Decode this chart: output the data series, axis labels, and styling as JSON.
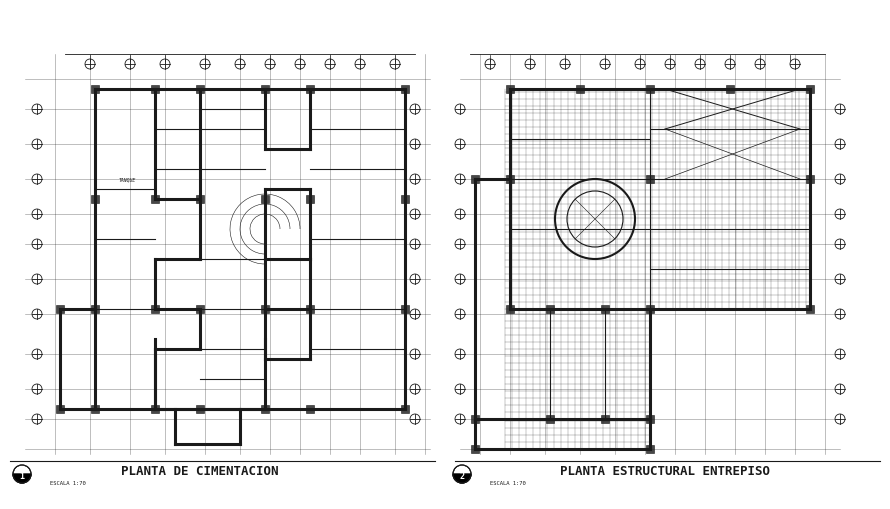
{
  "bg_color": "#ffffff",
  "line_color": "#1a1a1a",
  "fig_width": 8.9,
  "fig_height": 5.1,
  "dpi": 100,
  "title_left": "PLANTA DE CIMENTACION",
  "title_right": "PLANTA ESTRUCTURAL ENTREPISO",
  "scale_left": "ESCALA 1:70",
  "scale_right": "ESCALA 1:70",
  "label_number_left": "1",
  "label_number_right": "2"
}
